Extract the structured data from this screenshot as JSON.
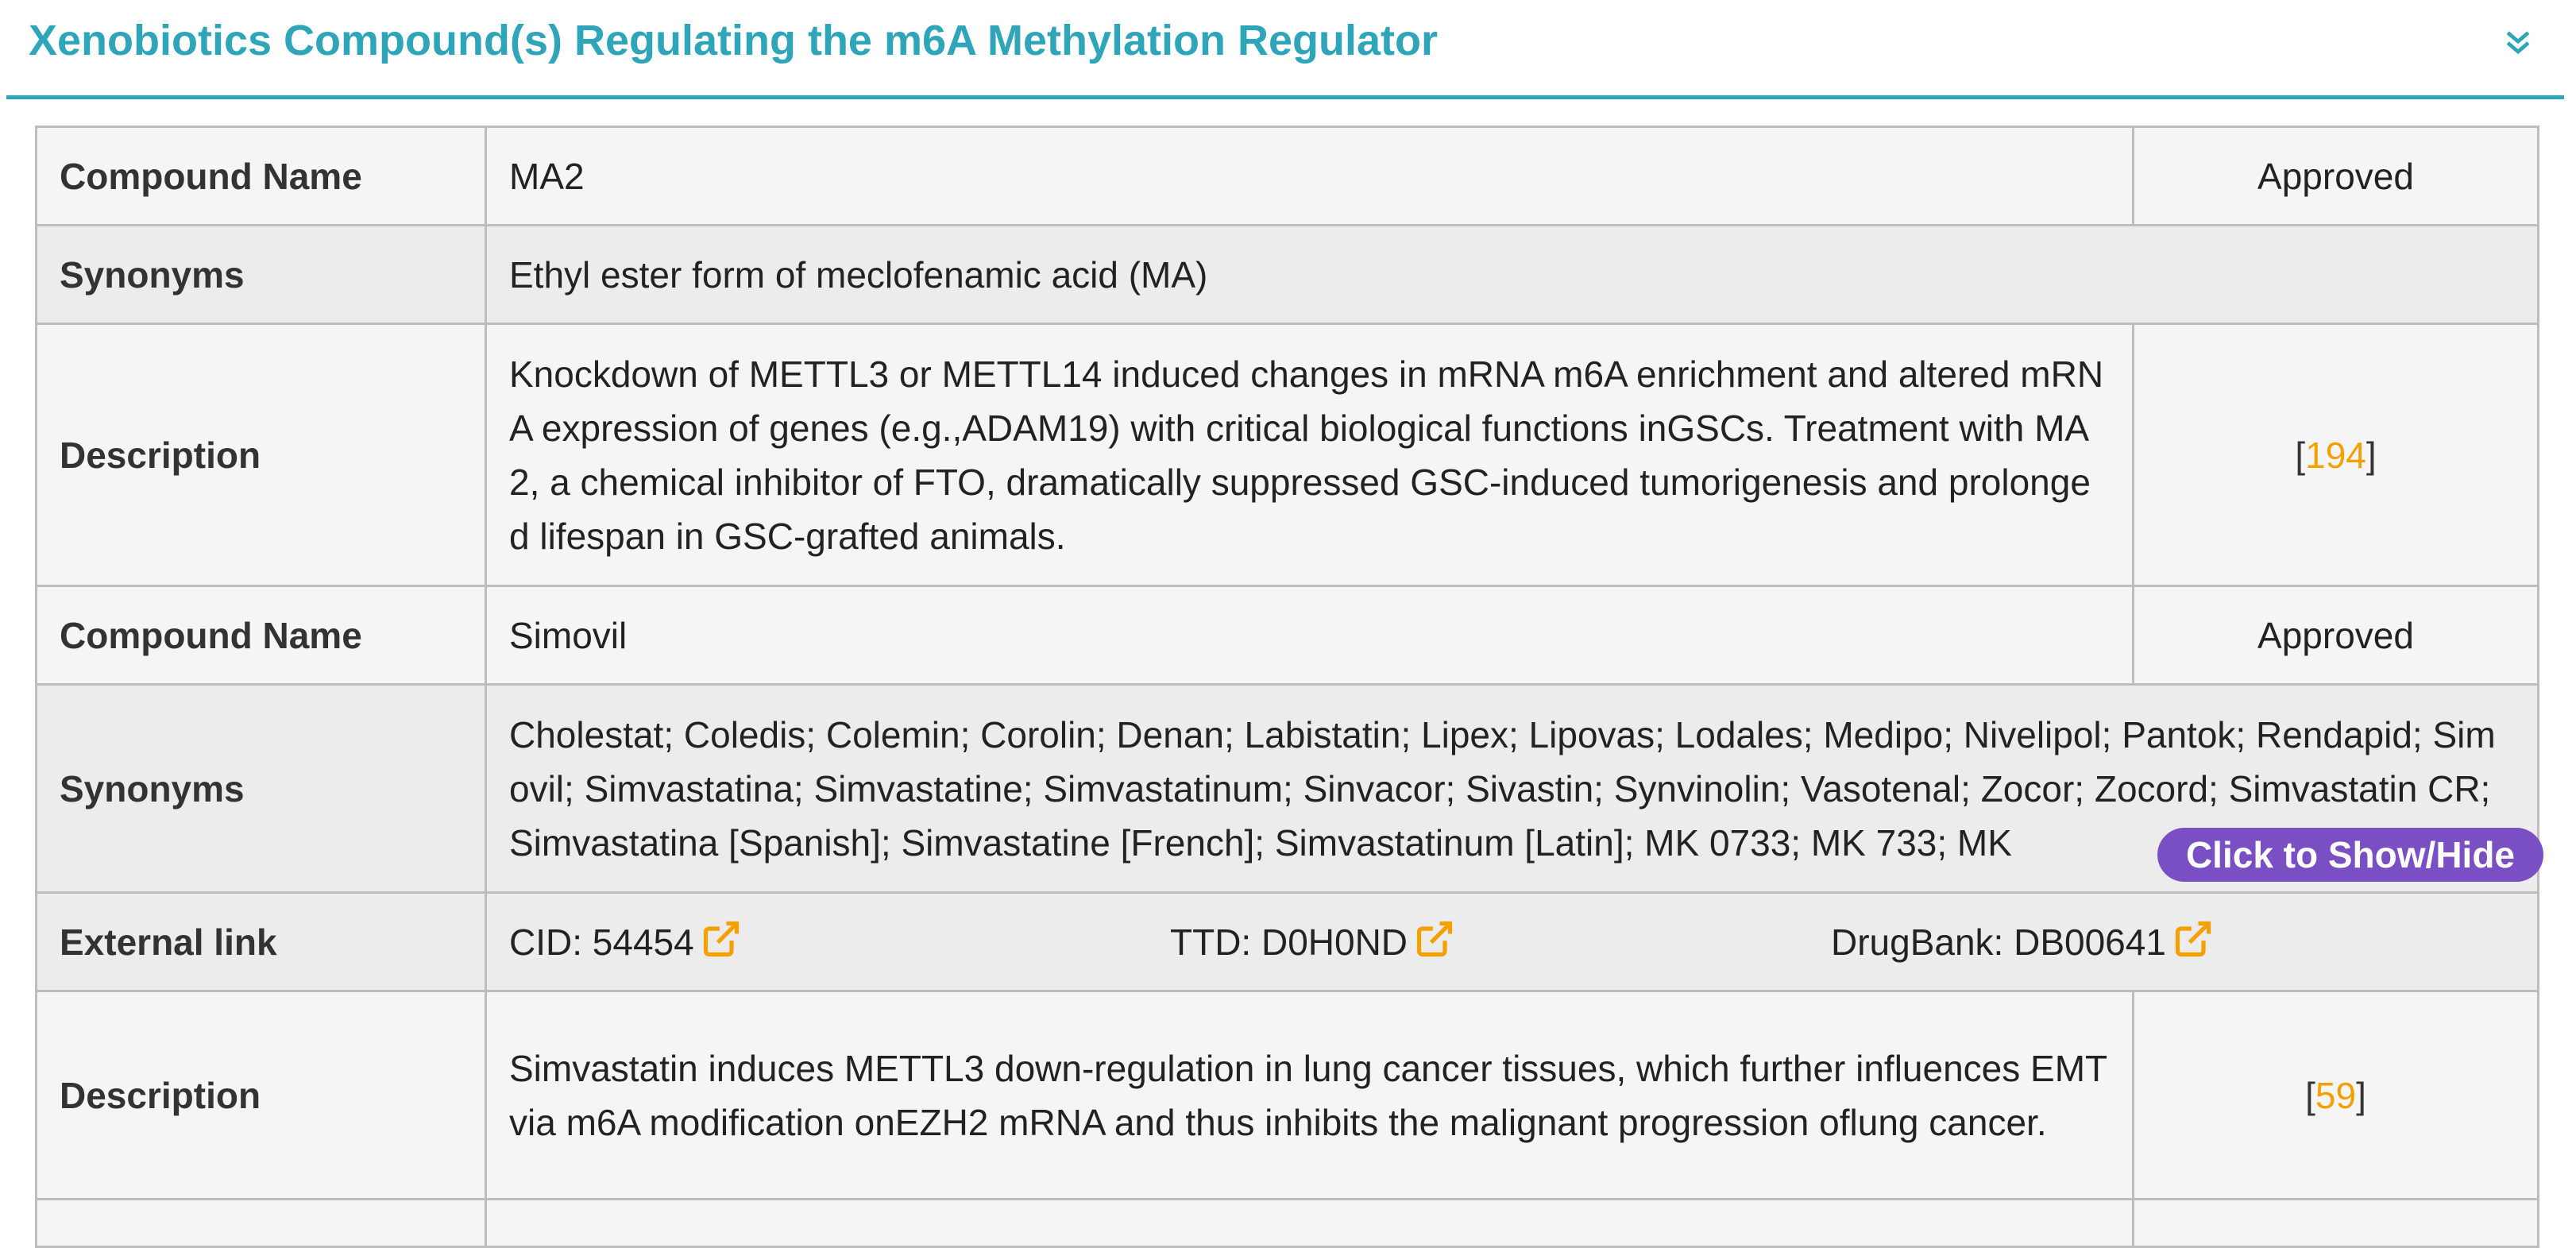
{
  "header": {
    "title": "Xenobiotics Compound(s) Regulating the m6A Methylation Regulator"
  },
  "compounds": [
    {
      "name_label": "Compound Name",
      "name": "MA2",
      "status": "Approved",
      "synonyms_label": "Synonyms",
      "synonyms": "Ethyl ester form of meclofenamic acid (MA)",
      "description_label": "Description",
      "description": "Knockdown of METTL3 or METTL14 induced changes in mRNA m6A enrichment and altered mRNA expression of genes (e.g.,ADAM19) with critical biological functions inGSCs. Treatment with MA2, a chemical inhibitor of FTO, dramatically suppressed GSC-induced tumorigenesis and prolonged lifespan in GSC-grafted animals.",
      "ref": "194"
    },
    {
      "name_label": "Compound Name",
      "name": "Simovil",
      "status": "Approved",
      "synonyms_label": "Synonyms",
      "synonyms": "Cholestat; Coledis; Colemin; Corolin; Denan; Labistatin; Lipex; Lipovas; Lodales; Medipo; Nivelipol; Pantok; Rendapid; Simovil; Simvastatina; Simvastatine; Simvastatinum; Sinvacor; Sivastin; Synvinolin; Vasotenal; Zocor; Zocord; Simvastatin CR; Simvastatina [Spanish]; Simvastatine [French]; Simvastatinum [Latin]; MK 0733; MK 733; MK",
      "toggle_label": "Click to Show/Hide",
      "external_label": "External link",
      "links": [
        {
          "text": "CID: 54454",
          "icon": "external-link-icon"
        },
        {
          "text": "TTD: D0H0ND",
          "icon": "external-link-icon"
        },
        {
          "text": "DrugBank: DB00641",
          "icon": "external-link-icon"
        }
      ],
      "description_label": "Description",
      "description": "Simvastatin induces METTL3 down-regulation in lung cancer tissues, which further influences EMT via m6A modification onEZH2 mRNA and thus inhibits the malignant progression oflung cancer.",
      "ref": "59"
    }
  ],
  "colors": {
    "accent": "#2fa5ba",
    "ref_link": "#f4a000",
    "toggle_button": "#7b4fc4",
    "external_icon": "#f4a000"
  }
}
